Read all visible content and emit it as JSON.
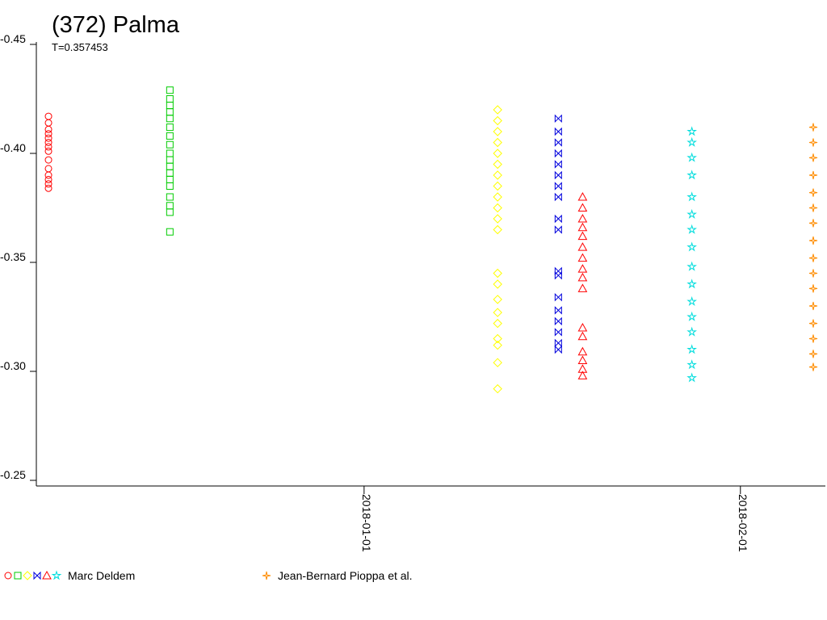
{
  "chart_data": {
    "type": "scatter",
    "title": "(372) Palma",
    "subtitle": "T=0.357453",
    "xlim": [
      "2017-12-05",
      "2018-02-08"
    ],
    "xticks": [
      "2018-01-01",
      "2018-02-01"
    ],
    "ylim": [
      -0.45,
      -0.25
    ],
    "yticks": [
      -0.45,
      {
        "value": -0.4,
        "label": "-0.40"
      },
      -0.35,
      {
        "value": -0.3,
        "label": "-0.30"
      },
      -0.25
    ],
    "observers": [
      {
        "name": "Marc Deldem",
        "series": [
          {
            "color": "#ff0000",
            "marker": "circle",
            "x": "2017-12-06",
            "values": [
              -0.417,
              -0.414,
              -0.411,
              -0.409,
              -0.407,
              -0.405,
              -0.403,
              -0.401,
              -0.397,
              -0.393,
              -0.39,
              -0.388,
              -0.386,
              -0.384
            ]
          },
          {
            "color": "#00cc00",
            "marker": "square",
            "x": "2017-12-16",
            "values": [
              -0.429,
              -0.425,
              -0.422,
              -0.419,
              -0.416,
              -0.412,
              -0.408,
              -0.404,
              -0.4,
              -0.397,
              -0.394,
              -0.391,
              -0.388,
              -0.385,
              -0.38,
              -0.376,
              -0.373,
              -0.364
            ]
          },
          {
            "color": "#ffff00",
            "marker": "diamond",
            "x": "2018-01-12",
            "values": [
              -0.42,
              -0.415,
              -0.41,
              -0.405,
              -0.4,
              -0.395,
              -0.39,
              -0.385,
              -0.38,
              -0.375,
              -0.37,
              -0.365,
              -0.345,
              -0.34,
              -0.333,
              -0.327,
              -0.322,
              -0.315,
              -0.312,
              -0.304,
              -0.292
            ]
          },
          {
            "color": "#0000dd",
            "marker": "bowtie",
            "x": "2018-01-17",
            "values": [
              -0.416,
              -0.41,
              -0.405,
              -0.4,
              -0.395,
              -0.39,
              -0.385,
              -0.38,
              -0.37,
              -0.365,
              -0.346,
              -0.344,
              -0.334,
              -0.328,
              -0.323,
              -0.318,
              -0.313,
              -0.31
            ]
          },
          {
            "color": "#ff0000",
            "marker": "triangle",
            "x": "2018-01-19",
            "values": [
              -0.38,
              -0.375,
              -0.37,
              -0.366,
              -0.362,
              -0.357,
              -0.352,
              -0.347,
              -0.343,
              -0.338,
              -0.32,
              -0.316,
              -0.309,
              -0.305,
              -0.301,
              -0.298
            ]
          },
          {
            "color": "#00dddd",
            "marker": "star",
            "x": "2018-01-28",
            "values": [
              -0.41,
              -0.405,
              -0.398,
              -0.39,
              -0.38,
              -0.372,
              -0.365,
              -0.357,
              -0.348,
              -0.34,
              -0.332,
              -0.325,
              -0.318,
              -0.31,
              -0.303,
              -0.297
            ]
          }
        ]
      },
      {
        "name": "Jean-Bernard Pioppa et al.",
        "series": [
          {
            "color": "#ff8c00",
            "marker": "star4",
            "x": "2018-02-07",
            "values": [
              -0.412,
              -0.405,
              -0.398,
              -0.39,
              -0.382,
              -0.375,
              -0.368,
              -0.36,
              -0.352,
              -0.345,
              -0.338,
              -0.33,
              -0.322,
              -0.315,
              -0.308,
              -0.302
            ]
          }
        ]
      }
    ]
  }
}
